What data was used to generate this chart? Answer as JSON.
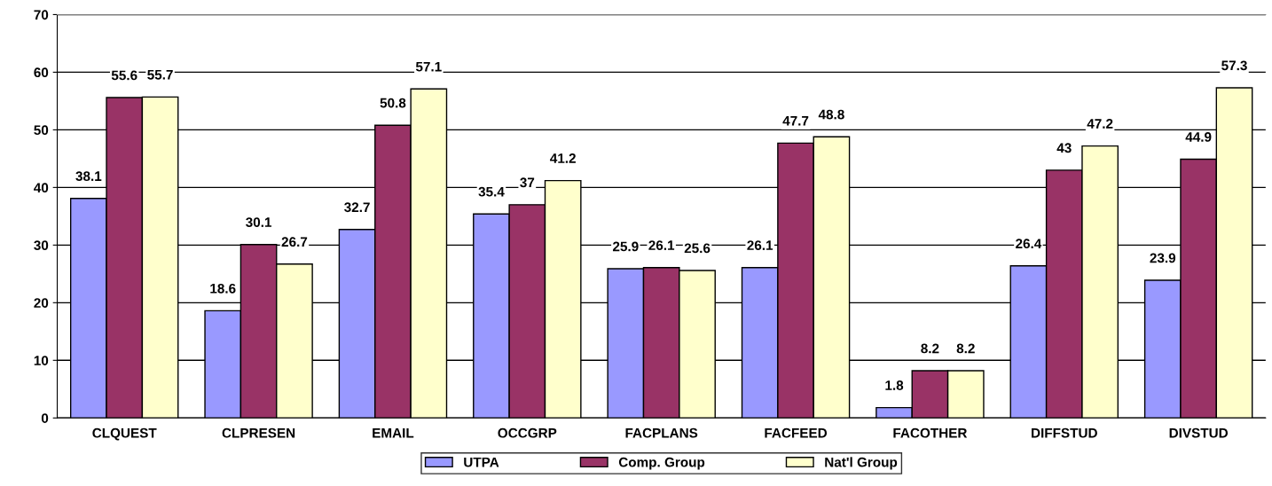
{
  "chart_data": {
    "type": "bar",
    "categories": [
      "CLQUEST",
      "CLPRESEN",
      "EMAIL",
      "OCCGRP",
      "FACPLANS",
      "FACFEED",
      "FACOTHER",
      "DIFFSTUD",
      "DIVSTUD"
    ],
    "series": [
      {
        "name": "UTPA",
        "color": "#9999ff",
        "values": [
          38.1,
          18.6,
          32.7,
          35.4,
          25.9,
          26.1,
          1.8,
          26.4,
          23.9
        ]
      },
      {
        "name": "Comp. Group",
        "color": "#993366",
        "values": [
          55.6,
          30.1,
          50.8,
          37,
          26.1,
          47.7,
          8.2,
          43,
          44.9
        ]
      },
      {
        "name": "Nat'l Group",
        "color": "#ffffcc",
        "values": [
          55.7,
          26.7,
          57.1,
          41.2,
          25.6,
          48.8,
          8.2,
          47.2,
          57.3
        ]
      }
    ],
    "ylim": [
      0,
      70
    ],
    "yticks": [
      0,
      10,
      20,
      30,
      40,
      50,
      60,
      70
    ],
    "grid": "y",
    "legend": "bottom",
    "data_labels": true
  }
}
